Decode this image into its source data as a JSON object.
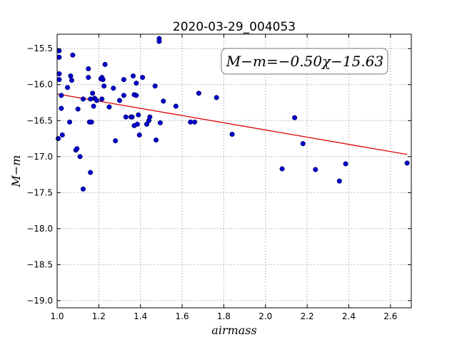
{
  "chart_data": {
    "type": "scatter",
    "title": "2020-03-29_004053",
    "xlabel": "airmass",
    "ylabel": "M−m",
    "xlim": [
      1.0,
      2.7
    ],
    "ylim": [
      -19.1,
      -15.3
    ],
    "y_inverted": false,
    "grid": true,
    "x_ticks": [
      "1.0",
      "1.2",
      "1.4",
      "1.6",
      "1.8",
      "2.0",
      "2.2",
      "2.4",
      "2.6"
    ],
    "y_ticks": [
      "−15.5",
      "−16.0",
      "−16.5",
      "−17.0",
      "−17.5",
      "−18.0",
      "−18.5",
      "−19.0"
    ],
    "annotation": "M−m=−0.50χ−15.63",
    "colors": {
      "points": "#0000cc",
      "fit": "#dd0000",
      "grid": "#888888"
    },
    "series": [
      {
        "x": [
          1.005,
          1.01,
          1.01,
          1.01,
          1.01,
          1.02,
          1.02,
          1.025,
          1.05,
          1.06,
          1.065,
          1.07,
          1.075,
          1.09,
          1.095,
          1.1,
          1.11,
          1.125,
          1.125,
          1.15,
          1.15,
          1.155,
          1.16,
          1.16,
          1.165,
          1.17,
          1.175,
          1.18,
          1.19,
          1.21,
          1.215,
          1.215,
          1.22,
          1.225,
          1.23,
          1.25,
          1.27,
          1.28,
          1.3,
          1.32,
          1.32,
          1.33,
          1.355,
          1.36,
          1.365,
          1.37,
          1.37,
          1.38,
          1.38,
          1.385,
          1.39,
          1.395,
          1.41,
          1.43,
          1.44,
          1.445,
          1.47,
          1.475,
          1.49,
          1.49,
          1.495,
          1.51,
          1.57,
          1.64,
          1.66,
          1.68,
          1.765,
          1.84,
          2.08,
          2.14,
          2.18,
          2.24,
          2.355,
          2.385,
          2.68
        ],
        "y": [
          -16.75,
          -15.53,
          -15.62,
          -15.85,
          -15.93,
          -16.15,
          -16.33,
          -16.7,
          -16.04,
          -16.52,
          -15.88,
          -15.94,
          -15.59,
          -16.91,
          -16.89,
          -16.34,
          -17.0,
          -17.45,
          -16.2,
          -15.78,
          -15.9,
          -16.52,
          -16.2,
          -17.22,
          -16.52,
          -16.12,
          -16.3,
          -16.19,
          -16.22,
          -15.92,
          -15.9,
          -16.2,
          -15.93,
          -16.02,
          -15.72,
          -16.31,
          -16.05,
          -16.78,
          -16.22,
          -15.93,
          -16.15,
          -16.45,
          -16.45,
          -16.45,
          -15.88,
          -16.57,
          -16.14,
          -16.15,
          -15.98,
          -16.55,
          -16.42,
          -16.7,
          -15.9,
          -16.55,
          -16.5,
          -16.45,
          -16.02,
          -16.77,
          -15.36,
          -15.4,
          -16.53,
          -16.23,
          -16.3,
          -16.52,
          -16.52,
          -16.12,
          -16.18,
          -16.69,
          -17.17,
          -16.46,
          -16.82,
          -17.18,
          -17.34,
          -17.1,
          -17.09
        ]
      }
    ],
    "fit": {
      "slope": -0.5,
      "intercept": -15.63
    }
  }
}
